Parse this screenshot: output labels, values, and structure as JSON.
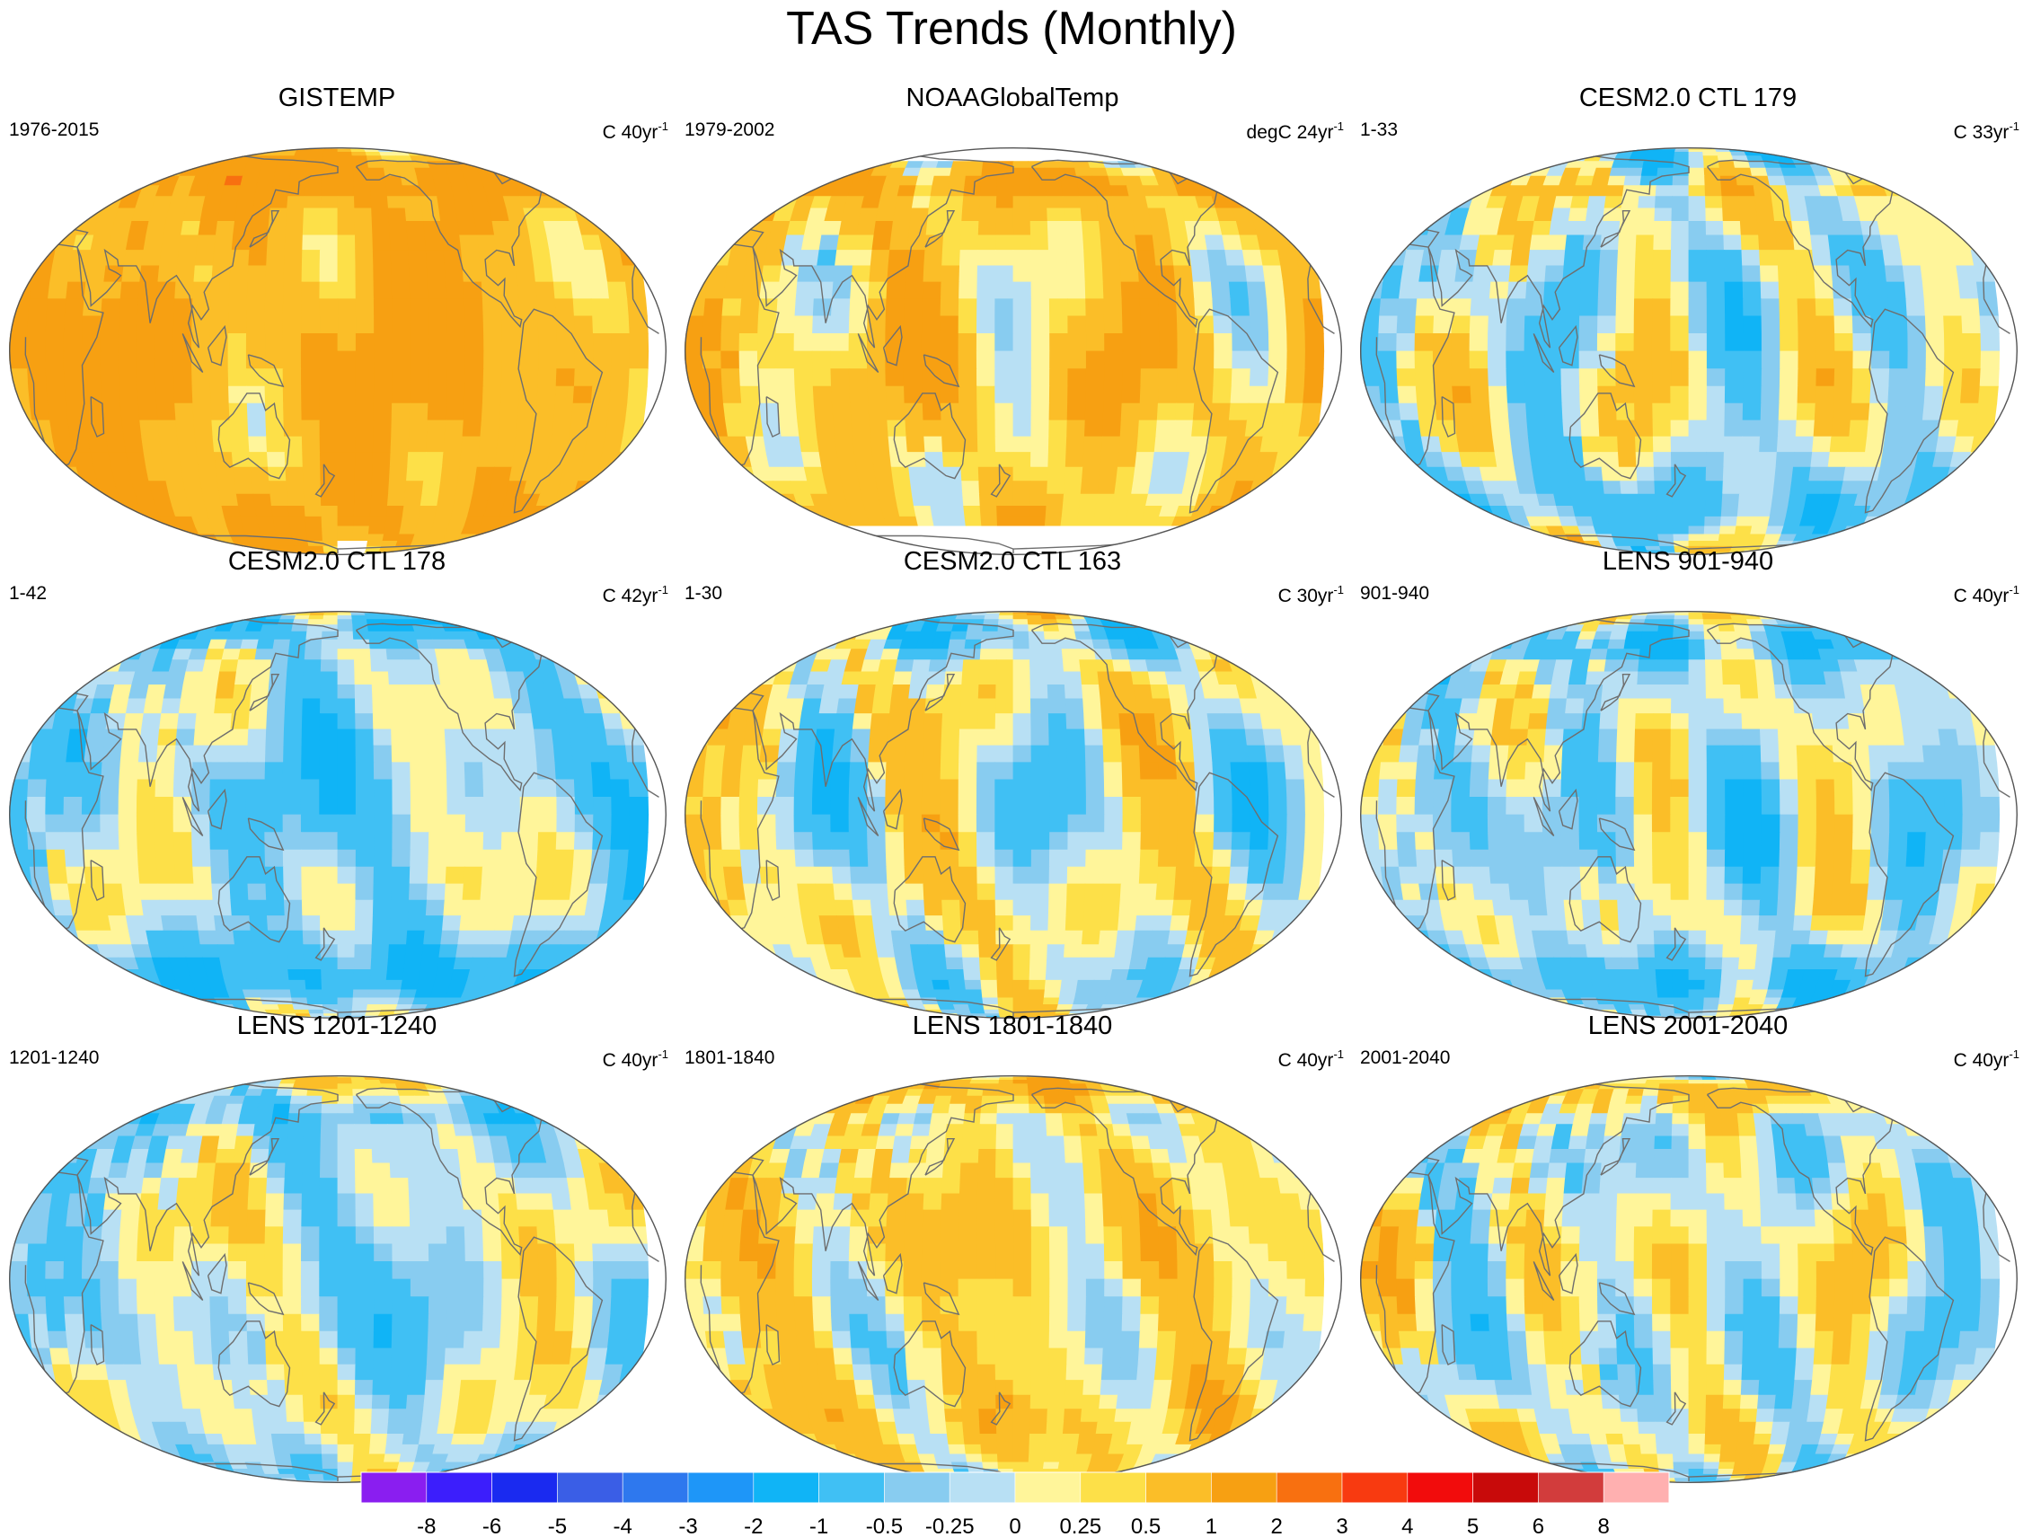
{
  "figure": {
    "title": "TAS Trends (Monthly)"
  },
  "chart_data": [
    {
      "type": "heatmap",
      "title": "GISTEMP",
      "left_label": "1976-2015",
      "unit_prefix": "C 40yr",
      "unit_sup": "-1",
      "variant": 0,
      "bias": 0.95,
      "amp": 0.45,
      "missing": "gistemp"
    },
    {
      "type": "heatmap",
      "title": "NOAAGlobalTemp",
      "left_label": "1979-2002",
      "unit_prefix": "degC 24yr",
      "unit_sup": "-1",
      "variant": 1,
      "bias": 0.55,
      "amp": 0.5,
      "missing": "noaa"
    },
    {
      "type": "heatmap",
      "title": "CESM2.0 CTL 179",
      "left_label": "1-33",
      "unit_prefix": "C 33yr",
      "unit_sup": "-1",
      "variant": 2,
      "bias": -0.05,
      "amp": 0.55,
      "missing": "none"
    },
    {
      "type": "heatmap",
      "title": "CESM2.0 CTL 178",
      "left_label": "1-42",
      "unit_prefix": "C 42yr",
      "unit_sup": "-1",
      "variant": 3,
      "bias": -0.3,
      "amp": 0.5,
      "missing": "none"
    },
    {
      "type": "heatmap",
      "title": "CESM2.0 CTL 163",
      "left_label": "1-30",
      "unit_prefix": "C 30yr",
      "unit_sup": "-1",
      "variant": 4,
      "bias": 0.05,
      "amp": 0.55,
      "missing": "none"
    },
    {
      "type": "heatmap",
      "title": "LENS 901-940",
      "left_label": "901-940",
      "unit_prefix": "C 40yr",
      "unit_sup": "-1",
      "variant": 5,
      "bias": -0.15,
      "amp": 0.5,
      "missing": "none"
    },
    {
      "type": "heatmap",
      "title": "LENS 1201-1240",
      "left_label": "1201-1240",
      "unit_prefix": "C 40yr",
      "unit_sup": "-1",
      "variant": 6,
      "bias": -0.12,
      "amp": 0.45,
      "missing": "none"
    },
    {
      "type": "heatmap",
      "title": "LENS 1801-1840",
      "left_label": "1801-1840",
      "unit_prefix": "C 40yr",
      "unit_sup": "-1",
      "variant": 7,
      "bias": 0.35,
      "amp": 0.5,
      "missing": "none"
    },
    {
      "type": "heatmap",
      "title": "LENS 2001-2040",
      "left_label": "2001-2040",
      "unit_prefix": "C 40yr",
      "unit_sup": "-1",
      "variant": 8,
      "bias": 0.0,
      "amp": 0.55,
      "missing": "none"
    }
  ],
  "colorbar": {
    "labels": [
      "-8",
      "-6",
      "-5",
      "-4",
      "-3",
      "-2",
      "-1",
      "-0.5",
      "-0.25",
      "0",
      "0.25",
      "0.5",
      "1",
      "2",
      "3",
      "4",
      "5",
      "6",
      "8"
    ],
    "colors": [
      "#8a1ef0",
      "#3c1efc",
      "#1a2af0",
      "#3a5ee6",
      "#2e78ee",
      "#1e96f8",
      "#10b4f6",
      "#40c0f4",
      "#88ccf0",
      "#b8e0f4",
      "#fff59a",
      "#fde048",
      "#fbbe28",
      "#f7a012",
      "#f87010",
      "#f83a10",
      "#f20c0c",
      "#c80a0a",
      "#d23c3c",
      "#ffb0b0"
    ]
  }
}
